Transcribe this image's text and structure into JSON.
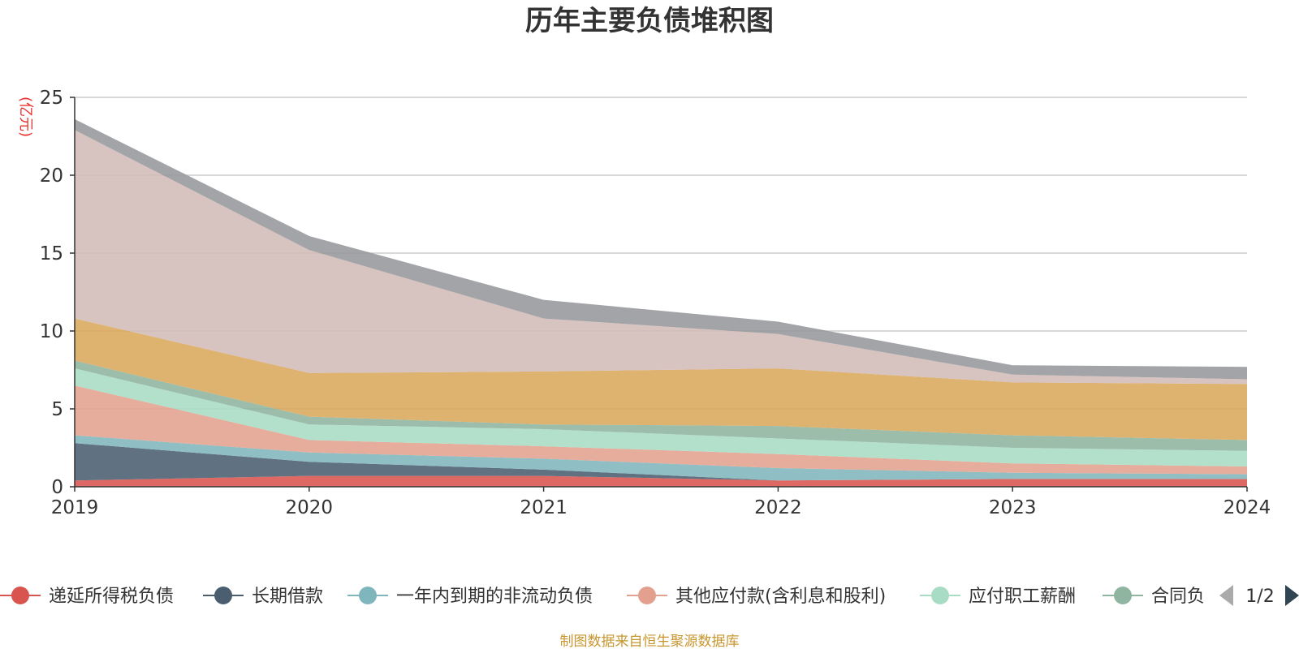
{
  "chart_data": {
    "type": "area",
    "stacked": true,
    "title": "历年主要负债堆积图",
    "unit_label": "(亿元)",
    "categories": [
      "2019",
      "2020",
      "2021",
      "2022",
      "2023",
      "2024"
    ],
    "ylim": [
      0,
      25
    ],
    "yticks": [
      0,
      5,
      10,
      15,
      20,
      25
    ],
    "grid": true,
    "series": [
      {
        "name": "递延所得税负债",
        "color": "#d9534f",
        "values": [
          0.4,
          0.7,
          0.7,
          0.4,
          0.5,
          0.5
        ]
      },
      {
        "name": "长期借款",
        "color": "#4a5e6f",
        "values": [
          2.4,
          0.9,
          0.4,
          0.0,
          0.0,
          0.0
        ]
      },
      {
        "name": "一年内到期的非流动负债",
        "color": "#7fb6bd",
        "values": [
          0.5,
          0.6,
          0.7,
          0.8,
          0.4,
          0.3
        ]
      },
      {
        "name": "其他应付款(含利息和股利)",
        "color": "#e3a08e",
        "values": [
          3.2,
          0.8,
          0.8,
          0.9,
          0.6,
          0.5
        ]
      },
      {
        "name": "应付职工薪酬",
        "color": "#a8dcc4",
        "values": [
          1.1,
          1.0,
          1.1,
          1.0,
          1.0,
          1.0
        ]
      },
      {
        "name": "合同负债",
        "color": "#8fb49f",
        "values": [
          0.5,
          0.5,
          0.3,
          0.8,
          0.8,
          0.7
        ]
      },
      {
        "name": "",
        "color": "#d9a75b",
        "values": [
          2.7,
          2.8,
          3.4,
          3.7,
          3.4,
          3.6
        ]
      },
      {
        "name": "",
        "color": "#d1bbb6",
        "values": [
          12.1,
          7.9,
          3.4,
          2.2,
          0.5,
          0.3
        ]
      },
      {
        "name": "",
        "color": "#96979c",
        "values": [
          0.7,
          0.9,
          1.2,
          0.8,
          0.6,
          0.8
        ]
      }
    ],
    "legend_placement": "bottom"
  },
  "legend": {
    "page_indicator": "1/2",
    "last_item_visible_text": "合同负"
  },
  "footer": {
    "source_text": "制图数据来自恒生聚源数据库"
  }
}
